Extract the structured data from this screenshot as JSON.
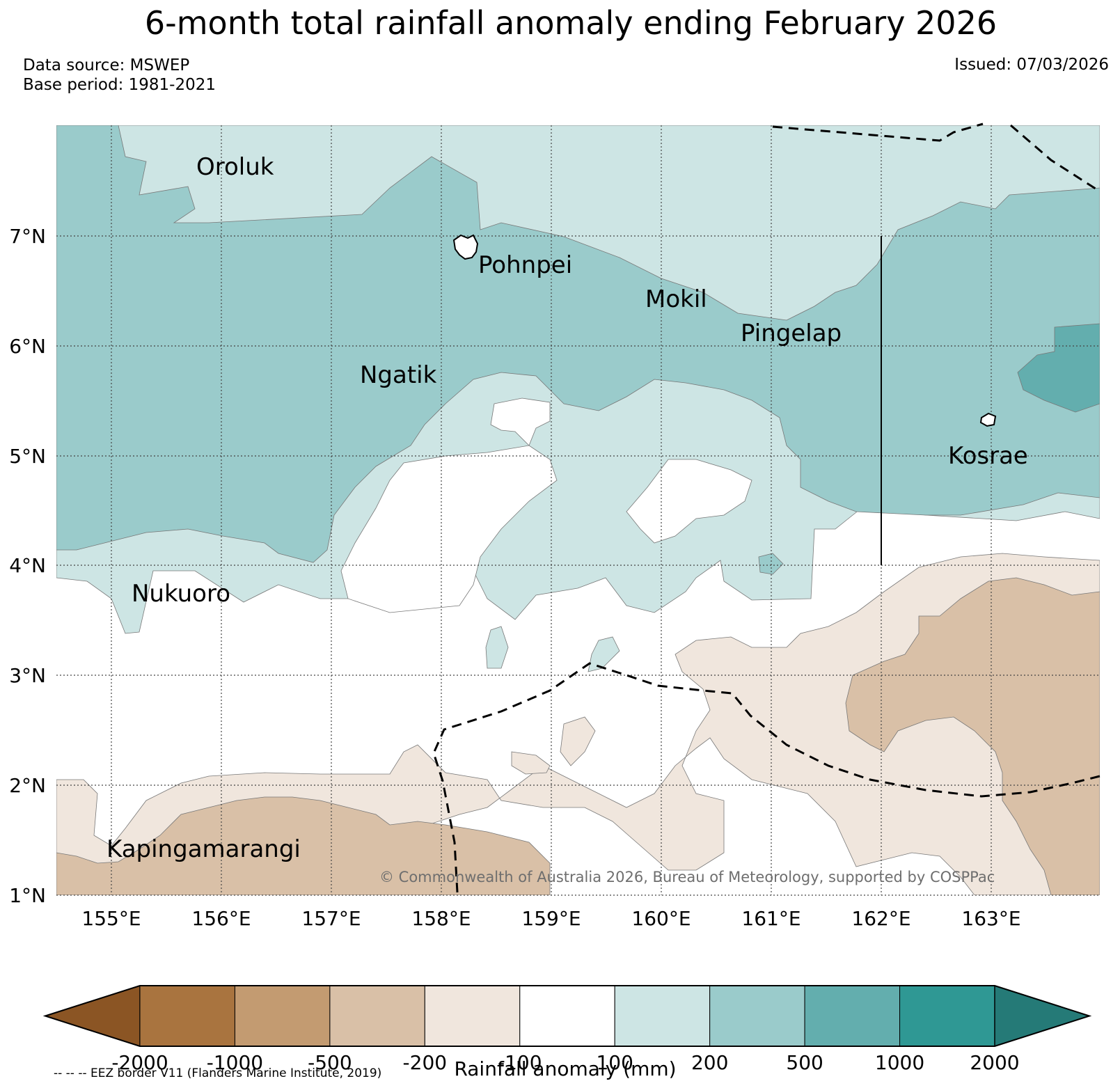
{
  "title": "6-month total rainfall anomaly ending February 2026",
  "data_source": "Data source: MSWEP",
  "base_period": "Base period: 1981-2021",
  "issued": "Issued: 07/03/2026",
  "copyright": "© Commonwealth of Australia 2026, Bureau of Meteorology, supported by COSPPac",
  "eez_note": "-- -- -- EEZ border V11 (Flanders Marine Institute, 2019)",
  "colorbar_label": "Rainfall anomaly (mm)",
  "lat_ticks": [
    "7°N",
    "6°N",
    "5°N",
    "4°N",
    "3°N",
    "2°N",
    "1°N"
  ],
  "lon_ticks": [
    "155°E",
    "156°E",
    "157°E",
    "158°E",
    "159°E",
    "160°E",
    "161°E",
    "162°E",
    "163°E"
  ],
  "places": [
    {
      "name": "Oroluk",
      "lon": 155.75,
      "lat": 7.7
    },
    {
      "name": "Pohnpei",
      "lon": 158.35,
      "lat": 6.8
    },
    {
      "name": "Mokil",
      "lon": 159.8,
      "lat": 6.45
    },
    {
      "name": "Pingelap",
      "lon": 160.7,
      "lat": 6.2
    },
    {
      "name": "Ngatik",
      "lon": 157.25,
      "lat": 5.8
    },
    {
      "name": "Kosrae",
      "lon": 162.95,
      "lat": 5.3
    },
    {
      "name": "Nukuoro",
      "lon": 155.2,
      "lat": 3.85
    },
    {
      "name": "Kapingamarangi",
      "lon": 154.95,
      "lat": 1.5
    }
  ],
  "legend": {
    "levels": [
      "-2000",
      "-1000",
      "-500",
      "-200",
      "-100",
      "100",
      "200",
      "500",
      "1000",
      "2000"
    ],
    "colors": [
      "#8b5524",
      "#a9743f",
      "#c39b71",
      "#d9c0a7",
      "#f0e6dd",
      "#ffffff",
      "#cde5e4",
      "#9acbcb",
      "#63aeae",
      "#2f9894",
      "#257a77"
    ]
  }
}
